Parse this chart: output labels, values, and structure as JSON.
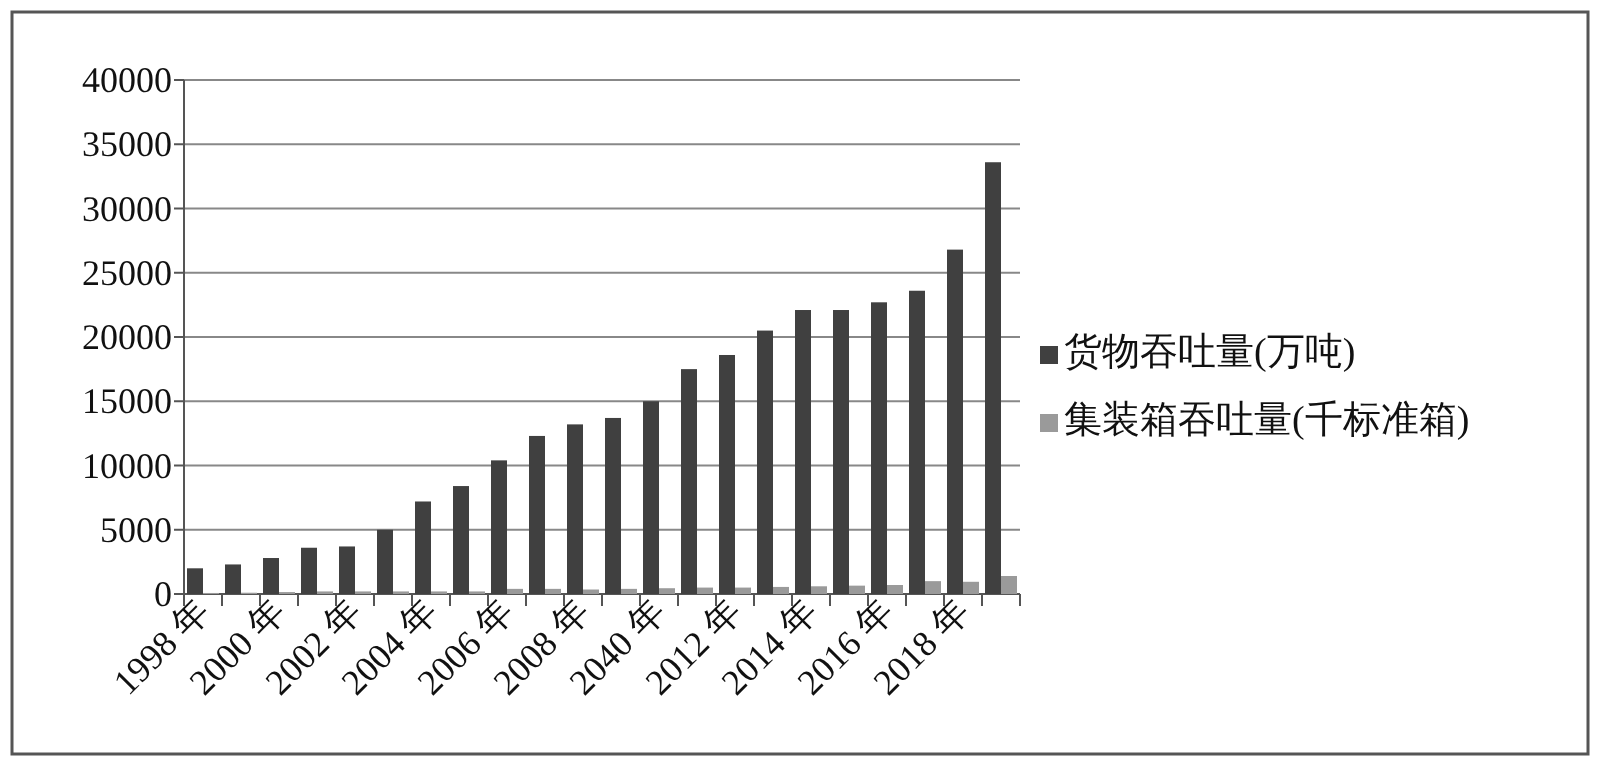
{
  "chart_data": {
    "type": "bar",
    "categories": [
      "1998 年",
      null,
      "2000 年",
      null,
      "2002 年",
      null,
      "2004 年",
      null,
      "2006 年",
      null,
      "2008 年",
      null,
      "2040 年",
      null,
      "2012 年",
      null,
      "2014 年",
      null,
      "2016 年",
      null,
      "2018 年",
      null
    ],
    "series": [
      {
        "name": "货物吞吐量(万吨)",
        "color": "#404040",
        "values": [
          2000,
          2300,
          2800,
          3600,
          3700,
          5000,
          7200,
          8400,
          10400,
          12300,
          13200,
          13700,
          15000,
          17500,
          18600,
          20500,
          22100,
          22100,
          22700,
          23600,
          26800,
          33600
        ]
      },
      {
        "name": "集装箱吞吐量(千标准箱)",
        "color": "#9a9a9a",
        "values": [
          80,
          100,
          150,
          200,
          200,
          200,
          200,
          200,
          400,
          400,
          350,
          400,
          450,
          500,
          500,
          550,
          600,
          650,
          700,
          1000,
          950,
          1400
        ]
      }
    ],
    "ylim": [
      0,
      40000
    ],
    "yticks": [
      0,
      5000,
      10000,
      15000,
      20000,
      25000,
      30000,
      35000,
      40000
    ],
    "grid": "y",
    "legend": "right"
  }
}
